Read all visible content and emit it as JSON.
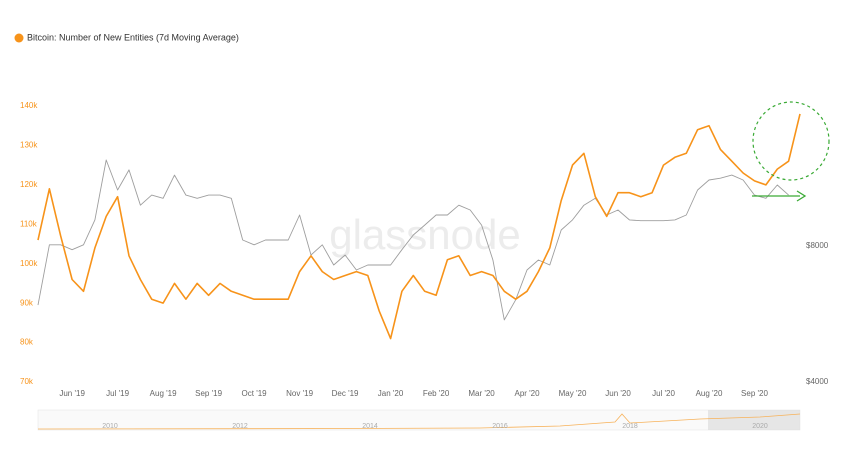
{
  "chart_data": {
    "type": "line",
    "title": "Bitcoin: Number of New Entities (7d Moving Average)",
    "watermark": "glassnode",
    "categories": [
      null,
      null,
      null,
      "Jun '19",
      null,
      null,
      null,
      "Jul '19",
      null,
      null,
      null,
      "Aug '19",
      null,
      null,
      null,
      "Sep '19",
      null,
      null,
      null,
      "Oct '19",
      null,
      null,
      null,
      "Nov '19",
      null,
      null,
      null,
      "Dec '19",
      null,
      null,
      null,
      "Jan '20",
      null,
      null,
      null,
      "Feb '20",
      null,
      null,
      null,
      "Mar '20",
      null,
      null,
      null,
      "Apr '20",
      null,
      null,
      null,
      "May '20",
      null,
      null,
      null,
      "Jun '20",
      null,
      null,
      null,
      "Jul '20",
      null,
      null,
      null,
      "Aug '20",
      null,
      null,
      null,
      "Sep '20",
      null,
      null,
      null,
      null
    ],
    "series": [
      {
        "color": "#f7931a",
        "axis": "y",
        "values": [
          106000,
          119000,
          107000,
          96000,
          93000,
          104000,
          112000,
          117000,
          102000,
          96000,
          91000,
          90000,
          95000,
          91000,
          95000,
          92000,
          95000,
          93000,
          92000,
          91000,
          91000,
          91000,
          91000,
          98000,
          102000,
          98000,
          96000,
          97000,
          98000,
          97000,
          88000,
          81000,
          93000,
          97000,
          93000,
          92000,
          101000,
          102000,
          97000,
          98000,
          97000,
          93000,
          91000,
          93000,
          98000,
          104000,
          116000,
          125000,
          128000,
          117000,
          112000,
          118000,
          118000,
          117000,
          118000,
          125000,
          127000,
          128000,
          134000,
          135000,
          129000,
          126000,
          123000,
          121000,
          120000,
          124000,
          126000,
          138000
        ]
      },
      {
        "color": "#9e9e9e",
        "axis": "y2",
        "values": [
          5920,
          8050,
          8050,
          7850,
          8050,
          9140,
          12400,
          10640,
          11790,
          9850,
          10370,
          10200,
          11480,
          10370,
          10200,
          10370,
          10370,
          10200,
          8250,
          8050,
          8250,
          8250,
          8250,
          9370,
          7640,
          8050,
          7260,
          7640,
          7080,
          7260,
          7260,
          7260,
          7850,
          8460,
          8900,
          9370,
          9370,
          9850,
          9610,
          8900,
          7450,
          5490,
          6080,
          7080,
          7450,
          7260,
          8680,
          9140,
          9850,
          10200,
          9370,
          9610,
          9140,
          9100,
          9100,
          9100,
          9140,
          9370,
          10640,
          11200,
          11300,
          11480,
          11200,
          10370,
          10200,
          10920,
          10370,
          null
        ]
      }
    ],
    "ylim": [
      70000,
      140000
    ],
    "yticks": [
      {
        "value": 70000,
        "label": "70k"
      },
      {
        "value": 80000,
        "label": "80k"
      },
      {
        "value": 90000,
        "label": "90k"
      },
      {
        "value": 100000,
        "label": "100k"
      },
      {
        "value": 110000,
        "label": "110k"
      },
      {
        "value": 120000,
        "label": "120k"
      },
      {
        "value": 130000,
        "label": "130k"
      },
      {
        "value": 140000,
        "label": "140k"
      }
    ],
    "y2lim": [
      4000,
      16330
    ],
    "y2log": true,
    "y2ticks": [
      {
        "value": 4000,
        "label": "$4000"
      },
      {
        "value": 8000,
        "label": "$8000"
      }
    ],
    "navigator_labels": [
      "2010",
      "2012",
      "2014",
      "2016",
      "2018",
      "2020"
    ]
  }
}
